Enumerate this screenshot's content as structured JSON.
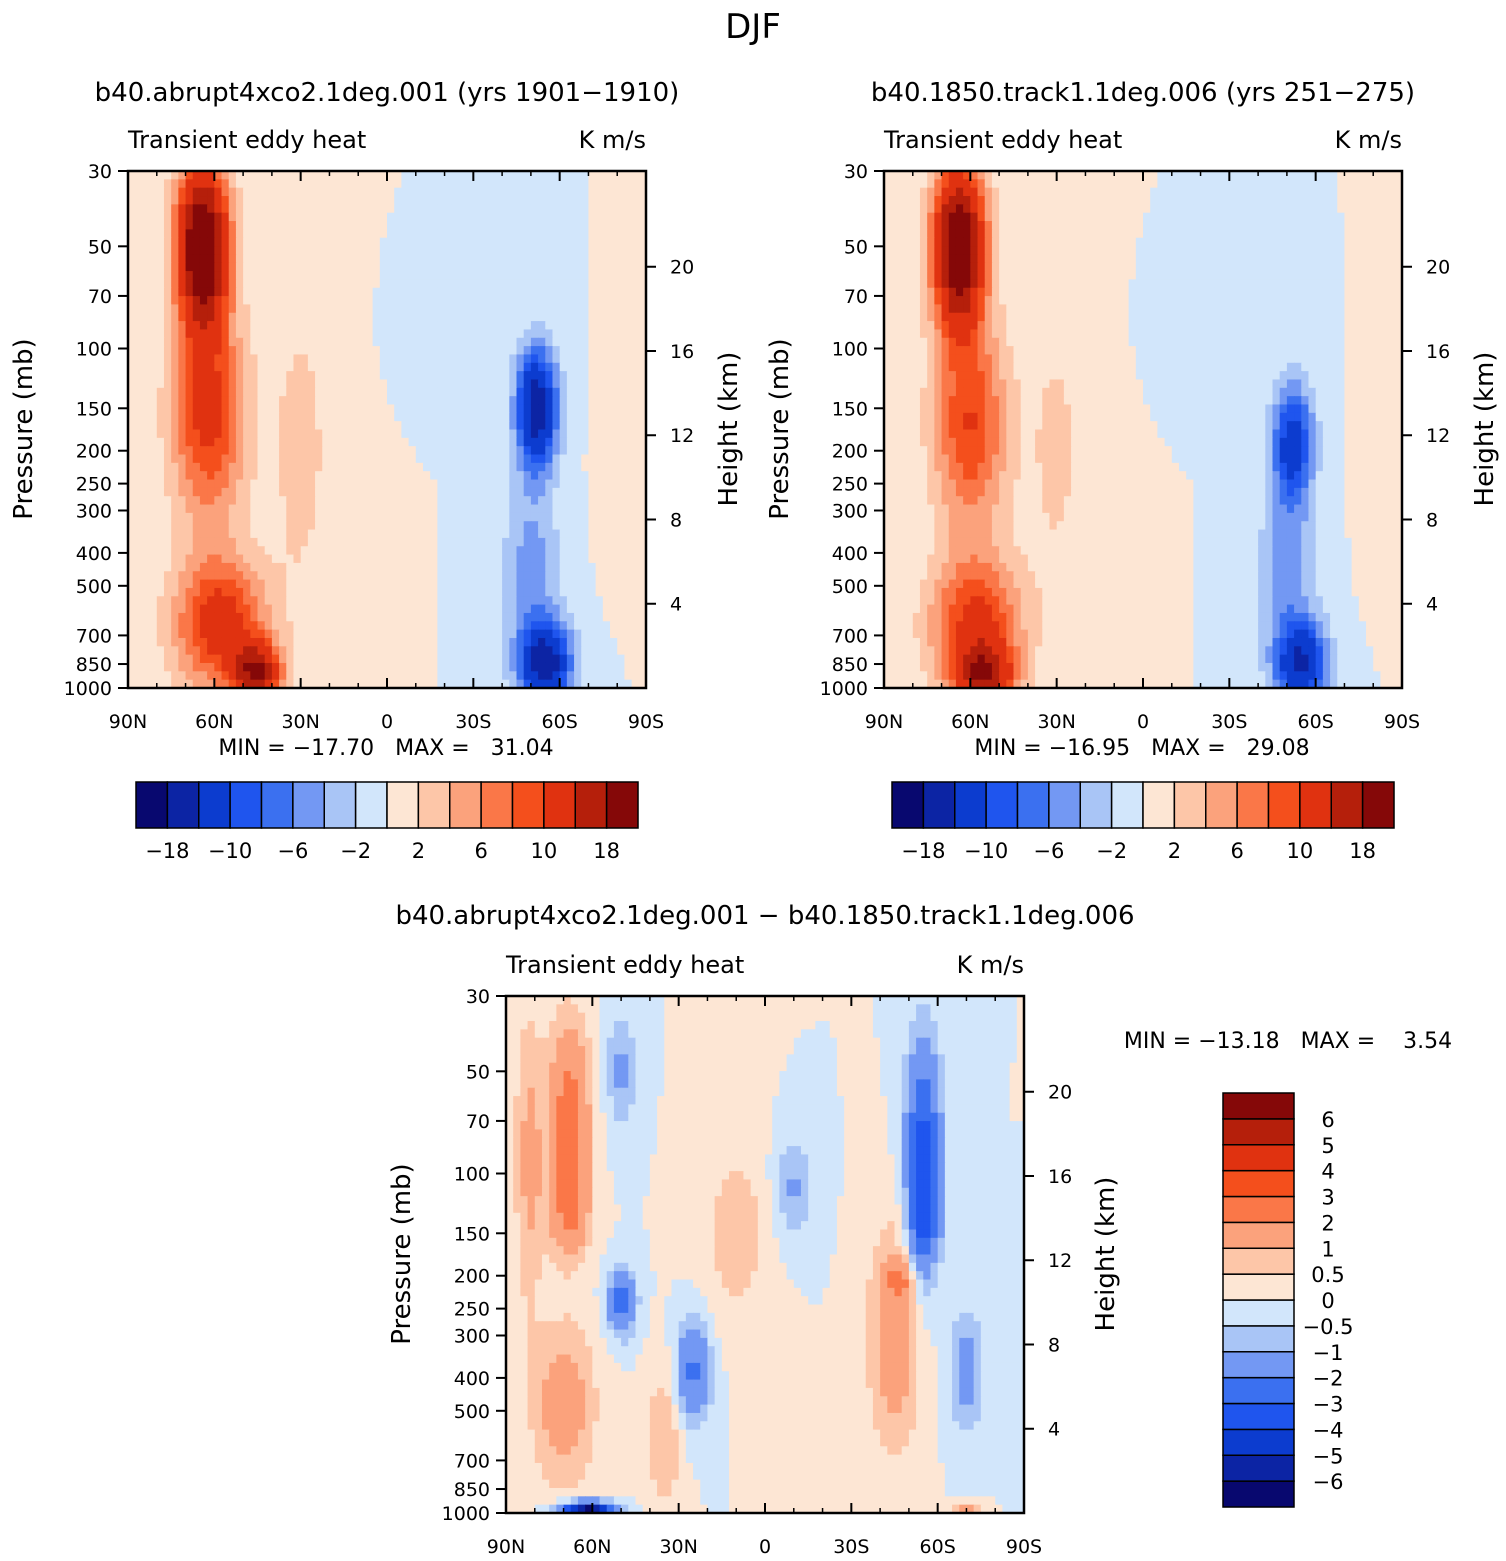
{
  "figure": {
    "season_title": "DJF"
  },
  "chart_data": [
    {
      "type": "heatmap",
      "title": "b40.abrupt4xco2.1deg.001 (yrs 1901−1910)",
      "left_label": "Transient eddy heat",
      "right_label": "K m/s",
      "xlabel": "",
      "ylabel": "Pressure (mb)",
      "ylabel_right": "Height (km)",
      "xlim": [
        90,
        -90
      ],
      "x_ticks": [
        90,
        60,
        30,
        0,
        -30,
        -60,
        -90
      ],
      "x_tick_labels": [
        "90N",
        "60N",
        "30N",
        "0",
        "30S",
        "60S",
        "90S"
      ],
      "ylim": [
        1000,
        30
      ],
      "y_ticks": [
        30,
        50,
        70,
        100,
        150,
        200,
        250,
        300,
        400,
        500,
        700,
        850,
        1000
      ],
      "y_tick_labels": [
        "30",
        "50",
        "70",
        "100",
        "150",
        "200",
        "250",
        "300",
        "400",
        "500",
        "700",
        "850",
        "1000"
      ],
      "height_ticks": [
        4,
        8,
        12,
        16,
        20
      ],
      "height_tick_labels": [
        "4",
        "8",
        "12",
        "16",
        "20"
      ],
      "minmax_text": "MIN = −17.70   MAX =   31.04",
      "min": -17.7,
      "max": 31.04,
      "colorbar": {
        "orientation": "horizontal",
        "levels": [
          -18,
          -14,
          -10,
          -8,
          -6,
          -4,
          -2,
          0,
          2,
          4,
          6,
          8,
          10,
          14,
          18
        ],
        "tick_labels": [
          "−18",
          "−10",
          "−6",
          "−2",
          "2",
          "6",
          "10",
          "18"
        ],
        "colors": [
          "#08086f",
          "#0c24a4",
          "#0c3ccf",
          "#1f55ee",
          "#3b70f0",
          "#7398f3",
          "#a9c5f6",
          "#d2e6fb",
          "#fde6d4",
          "#fdc6a8",
          "#fba27c",
          "#fa7748",
          "#f44f1c",
          "#e03210",
          "#b51f0b",
          "#850808"
        ]
      },
      "features": [
        {
          "lat": 64,
          "p": 50,
          "value": 24,
          "lon_spread": 9,
          "p_spread": 0.55
        },
        {
          "lat": 62,
          "p": 160,
          "value": 11,
          "lon_spread": 13,
          "p_spread": 0.7
        },
        {
          "lat": 58,
          "p": 650,
          "value": 12,
          "lon_spread": 16,
          "p_spread": 0.45
        },
        {
          "lat": 45,
          "p": 900,
          "value": 16,
          "lon_spread": 8,
          "p_spread": 0.2
        },
        {
          "lat": 30,
          "p": 200,
          "value": 3,
          "lon_spread": 10,
          "p_spread": 1.0
        },
        {
          "lat": -52,
          "p": 150,
          "value": -17,
          "lon_spread": 7,
          "p_spread": 0.4
        },
        {
          "lat": -55,
          "p": 850,
          "value": -16,
          "lon_spread": 9,
          "p_spread": 0.28
        },
        {
          "lat": -50,
          "p": 450,
          "value": -5,
          "lon_spread": 10,
          "p_spread": 0.6
        },
        {
          "lat": -10,
          "p": 100,
          "value": -1.5,
          "lon_spread": 6,
          "p_spread": 0.3
        },
        {
          "lat": 5,
          "p": 400,
          "value": 1.5,
          "lon_spread": 7,
          "p_spread": 0.6
        },
        {
          "lat": -80,
          "p": 230,
          "value": 2,
          "lon_spread": 6,
          "p_spread": 0.5
        }
      ]
    },
    {
      "type": "heatmap",
      "title": "b40.1850.track1.1deg.006 (yrs 251−275)",
      "left_label": "Transient eddy heat",
      "right_label": "K m/s",
      "xlabel": "",
      "ylabel": "Pressure (mb)",
      "ylabel_right": "Height (km)",
      "xlim": [
        90,
        -90
      ],
      "x_ticks": [
        90,
        60,
        30,
        0,
        -30,
        -60,
        -90
      ],
      "x_tick_labels": [
        "90N",
        "60N",
        "30N",
        "0",
        "30S",
        "60S",
        "90S"
      ],
      "ylim": [
        1000,
        30
      ],
      "y_ticks": [
        30,
        50,
        70,
        100,
        150,
        200,
        250,
        300,
        400,
        500,
        700,
        850,
        1000
      ],
      "y_tick_labels": [
        "30",
        "50",
        "70",
        "100",
        "150",
        "200",
        "250",
        "300",
        "400",
        "500",
        "700",
        "850",
        "1000"
      ],
      "height_ticks": [
        4,
        8,
        12,
        16,
        20
      ],
      "height_tick_labels": [
        "4",
        "8",
        "12",
        "16",
        "20"
      ],
      "minmax_text": "MIN = −16.95   MAX =   29.08",
      "min": -16.95,
      "max": 29.08,
      "colorbar": {
        "orientation": "horizontal",
        "levels": [
          -18,
          -14,
          -10,
          -8,
          -6,
          -4,
          -2,
          0,
          2,
          4,
          6,
          8,
          10,
          14,
          18
        ],
        "tick_labels": [
          "−18",
          "−10",
          "−6",
          "−2",
          "2",
          "6",
          "10",
          "18"
        ],
        "colors": [
          "#08086f",
          "#0c24a4",
          "#0c3ccf",
          "#1f55ee",
          "#3b70f0",
          "#7398f3",
          "#a9c5f6",
          "#d2e6fb",
          "#fde6d4",
          "#fdc6a8",
          "#fba27c",
          "#fa7748",
          "#f44f1c",
          "#e03210",
          "#b51f0b",
          "#850808"
        ]
      },
      "features": [
        {
          "lat": 64,
          "p": 50,
          "value": 23,
          "lon_spread": 9,
          "p_spread": 0.55
        },
        {
          "lat": 60,
          "p": 170,
          "value": 10,
          "lon_spread": 13,
          "p_spread": 0.7
        },
        {
          "lat": 58,
          "p": 650,
          "value": 11,
          "lon_spread": 16,
          "p_spread": 0.45
        },
        {
          "lat": 55,
          "p": 920,
          "value": 14,
          "lon_spread": 10,
          "p_spread": 0.2
        },
        {
          "lat": 30,
          "p": 200,
          "value": 2.5,
          "lon_spread": 10,
          "p_spread": 1.0
        },
        {
          "lat": -52,
          "p": 190,
          "value": -12,
          "lon_spread": 7,
          "p_spread": 0.4
        },
        {
          "lat": -55,
          "p": 850,
          "value": -14,
          "lon_spread": 9,
          "p_spread": 0.28
        },
        {
          "lat": -50,
          "p": 450,
          "value": -5,
          "lon_spread": 10,
          "p_spread": 0.6
        },
        {
          "lat": -10,
          "p": 100,
          "value": -1.5,
          "lon_spread": 6,
          "p_spread": 0.3
        },
        {
          "lat": 5,
          "p": 400,
          "value": 1.5,
          "lon_spread": 7,
          "p_spread": 0.6
        },
        {
          "lat": -82,
          "p": 250,
          "value": 2,
          "lon_spread": 6,
          "p_spread": 0.5
        }
      ]
    },
    {
      "type": "heatmap",
      "title": "b40.abrupt4xco2.1deg.001 − b40.1850.track1.1deg.006",
      "left_label": "Transient eddy heat",
      "right_label": "K m/s",
      "xlabel": "",
      "ylabel": "Pressure (mb)",
      "ylabel_right": "Height (km)",
      "xlim": [
        90,
        -90
      ],
      "x_ticks": [
        90,
        60,
        30,
        0,
        -30,
        -60,
        -90
      ],
      "x_tick_labels": [
        "90N",
        "60N",
        "30N",
        "0",
        "30S",
        "60S",
        "90S"
      ],
      "ylim": [
        1000,
        30
      ],
      "y_ticks": [
        30,
        50,
        70,
        100,
        150,
        200,
        250,
        300,
        400,
        500,
        700,
        850,
        1000
      ],
      "y_tick_labels": [
        "30",
        "50",
        "70",
        "100",
        "150",
        "200",
        "250",
        "300",
        "400",
        "500",
        "700",
        "850",
        "1000"
      ],
      "height_ticks": [
        4,
        8,
        12,
        16,
        20
      ],
      "height_tick_labels": [
        "4",
        "8",
        "12",
        "16",
        "20"
      ],
      "minmax_text": "MIN = −13.18   MAX =    3.54",
      "min": -13.18,
      "max": 3.54,
      "colorbar": {
        "orientation": "vertical",
        "levels": [
          -6,
          -5,
          -4,
          -3,
          -2,
          -1,
          -0.5,
          0,
          0.5,
          1,
          2,
          3,
          4,
          5,
          6
        ],
        "tick_labels": [
          "−6",
          "−5",
          "−4",
          "−3",
          "−2",
          "−1",
          "−0.5",
          "0",
          "0.5",
          "1",
          "2",
          "3",
          "4",
          "5",
          "6"
        ],
        "colors": [
          "#08086f",
          "#0c24a4",
          "#0c3ccf",
          "#1f55ee",
          "#3b70f0",
          "#7398f3",
          "#a9c5f6",
          "#d2e6fb",
          "#fde6d4",
          "#fdc6a8",
          "#fba27c",
          "#fa7748",
          "#f44f1c",
          "#e03210",
          "#b51f0b",
          "#850808"
        ]
      },
      "features": [
        {
          "lat": 68,
          "p": 70,
          "value": 2.6,
          "lon_spread": 7,
          "p_spread": 0.65
        },
        {
          "lat": 68,
          "p": 130,
          "value": 1.5,
          "lon_spread": 7,
          "p_spread": 0.3
        },
        {
          "lat": 70,
          "p": 480,
          "value": 1.5,
          "lon_spread": 11,
          "p_spread": 0.55
        },
        {
          "lat": 82,
          "p": 90,
          "value": 1.2,
          "lon_spread": 5,
          "p_spread": 1.0
        },
        {
          "lat": 50,
          "p": 240,
          "value": -2.5,
          "lon_spread": 5,
          "p_spread": 0.22
        },
        {
          "lat": 62,
          "p": 990,
          "value": -7,
          "lon_spread": 9,
          "p_spread": 0.06
        },
        {
          "lat": 25,
          "p": 380,
          "value": -2.2,
          "lon_spread": 6,
          "p_spread": 0.35
        },
        {
          "lat": 50,
          "p": 50,
          "value": -1.2,
          "lon_spread": 5,
          "p_spread": 0.4
        },
        {
          "lat": -55,
          "p": 90,
          "value": -3.5,
          "lon_spread": 6,
          "p_spread": 0.75
        },
        {
          "lat": -55,
          "p": 140,
          "value": -1.5,
          "lon_spread": 5,
          "p_spread": 0.25
        },
        {
          "lat": -45,
          "p": 300,
          "value": 1.6,
          "lon_spread": 9,
          "p_spread": 0.75
        },
        {
          "lat": -47,
          "p": 205,
          "value": 1.8,
          "lon_spread": 4,
          "p_spread": 0.12
        },
        {
          "lat": -70,
          "p": 380,
          "value": -1.4,
          "lon_spread": 6,
          "p_spread": 0.4
        },
        {
          "lat": -70,
          "p": 990,
          "value": 2.2,
          "lon_spread": 4,
          "p_spread": 0.06
        },
        {
          "lat": -10,
          "p": 110,
          "value": -1.1,
          "lon_spread": 7,
          "p_spread": 0.35
        },
        {
          "lat": 10,
          "p": 150,
          "value": 0.8,
          "lon_spread": 12,
          "p_spread": 0.6
        },
        {
          "lat": 35,
          "p": 600,
          "value": 1.0,
          "lon_spread": 6,
          "p_spread": 0.5
        }
      ]
    }
  ]
}
